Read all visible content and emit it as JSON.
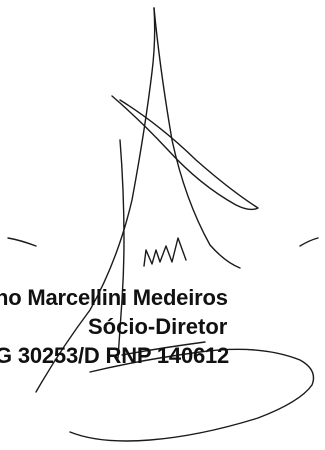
{
  "signatory": {
    "name": "no Marcellini Medeiros",
    "role": "Sócio-Diretor",
    "registration": "G 30253/D RNP 140612"
  },
  "signature": {
    "icon": "handwritten-signature-icon",
    "ink_color": "#1a1a1a"
  }
}
